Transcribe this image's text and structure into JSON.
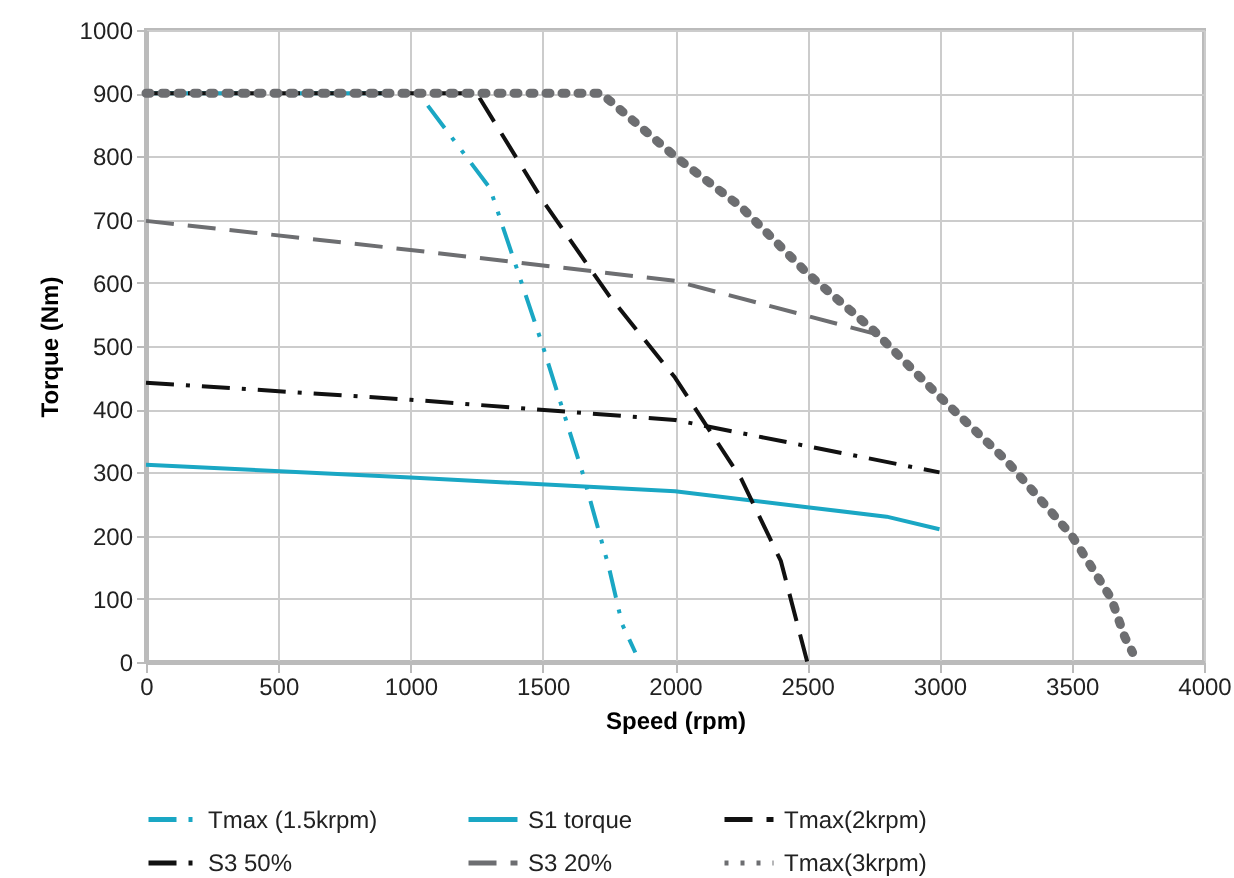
{
  "chart_data": {
    "type": "line",
    "xlabel": "Speed (rpm)",
    "ylabel": "Torque (Nm)",
    "xlim": [
      0,
      4000
    ],
    "ylim": [
      0,
      1000
    ],
    "xticks": [
      0,
      500,
      1000,
      1500,
      2000,
      2500,
      3000,
      3500,
      4000
    ],
    "yticks": [
      0,
      100,
      200,
      300,
      400,
      500,
      600,
      700,
      800,
      900,
      1000
    ],
    "grid": true,
    "legend": "bottom",
    "marker": "none",
    "series": [
      {
        "name": "Tmax (1.5krpm)",
        "color": "#1aa7c4",
        "line_style": "dashdotdot",
        "x": [
          0,
          1030,
          1300,
          1500,
          1650,
          1750,
          1800,
          1850
        ],
        "values": [
          900,
          900,
          750,
          500,
          300,
          150,
          60,
          15
        ]
      },
      {
        "name": "S1 torque",
        "color": "#1aa7c4",
        "line_style": "solid",
        "x": [
          0,
          1000,
          2000,
          2500,
          2800,
          3000
        ],
        "values": [
          312,
          292,
          270,
          245,
          230,
          210
        ]
      },
      {
        "name": "Tmax(2krpm)",
        "color": "#111111",
        "line_style": "dashed",
        "x": [
          0,
          1250,
          1500,
          1750,
          2000,
          2250,
          2400,
          2500
        ],
        "values": [
          900,
          900,
          730,
          580,
          450,
          290,
          160,
          0
        ]
      },
      {
        "name": "S3 50%",
        "color": "#111111",
        "line_style": "dashdot",
        "x": [
          0,
          1000,
          2000,
          3000
        ],
        "values": [
          442,
          415,
          383,
          300
        ]
      },
      {
        "name": "S3 20%",
        "color": "#6d6e71",
        "line_style": "dashed",
        "x": [
          0,
          1000,
          2000,
          2750
        ],
        "values": [
          698,
          652,
          603,
          520
        ]
      },
      {
        "name": "Tmax(3krpm)",
        "color": "#6d6e71",
        "line_style": "dotted",
        "x": [
          0,
          1720,
          2000,
          2250,
          2500,
          2750,
          3000,
          3250,
          3500,
          3650,
          3700,
          3730
        ],
        "values": [
          900,
          900,
          800,
          720,
          615,
          525,
          420,
          320,
          200,
          100,
          40,
          15
        ]
      }
    ]
  }
}
